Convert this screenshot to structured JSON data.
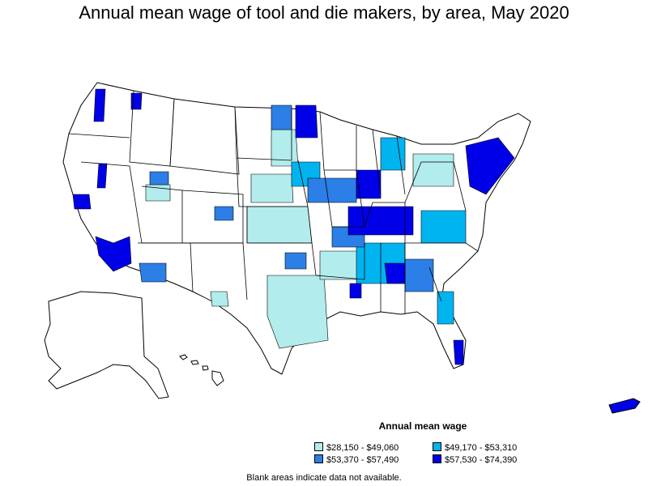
{
  "title": "Annual mean wage of tool and die makers, by area, May 2020",
  "legend": {
    "title": "Annual mean wage",
    "items": [
      {
        "label": "$28,150 - $49,060",
        "color": "#b3ecec"
      },
      {
        "label": "$49,170 - $53,310",
        "color": "#00b4f0"
      },
      {
        "label": "$53,370 - $57,490",
        "color": "#2c7fe6"
      },
      {
        "label": "$57,530 - $74,390",
        "color": "#0000e8"
      }
    ]
  },
  "footnote": "Blank areas indicate data not available."
}
